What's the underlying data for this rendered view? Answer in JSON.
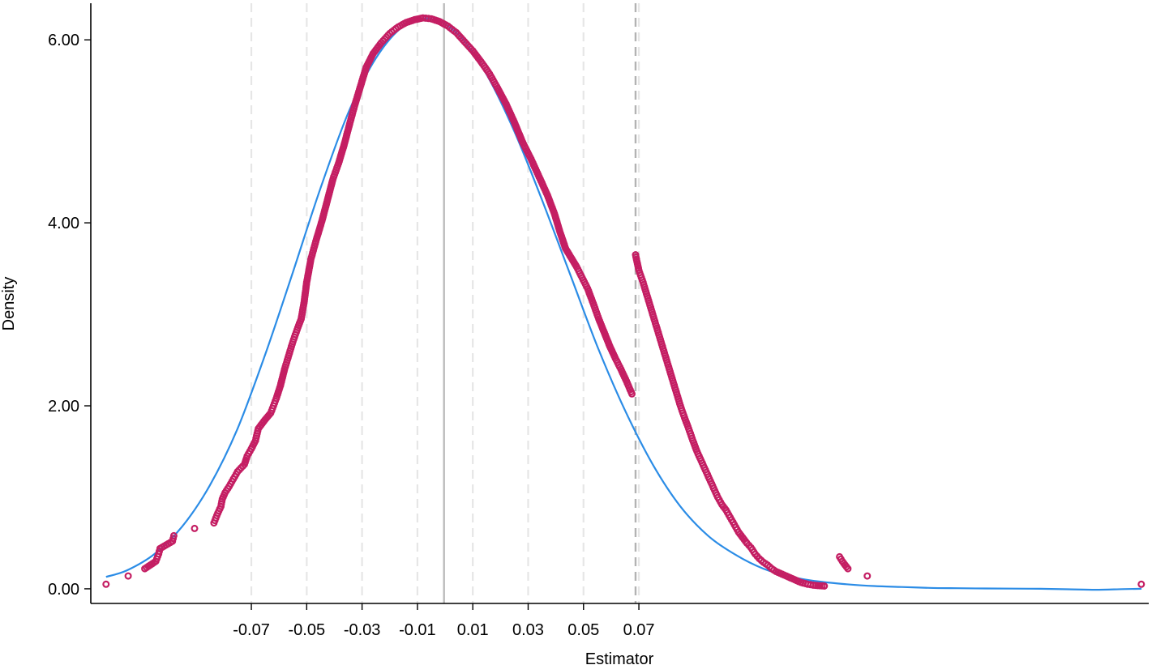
{
  "chart_data": {
    "type": "scatter",
    "xlabel": "Estimator",
    "ylabel": "Density",
    "xlim": [
      -0.128,
      0.2542
    ],
    "ylim": [
      -0.16,
      6.4
    ],
    "x_ticks": [
      -0.07,
      -0.05,
      -0.03,
      -0.01,
      0.01,
      0.03,
      0.05,
      0.07
    ],
    "x_tick_labels": [
      "-0.07",
      "-0.05",
      "-0.03",
      "-0.01",
      "0.01",
      "0.03",
      "0.05",
      "0.07"
    ],
    "y_ticks": [
      0,
      2,
      4,
      6
    ],
    "y_tick_labels": [
      "0.00",
      "2.00",
      "4.00",
      "6.00"
    ],
    "grid": false,
    "reference_lines": {
      "dashed_light": [
        -0.07,
        -0.05,
        -0.03,
        -0.01,
        0.01,
        0.03,
        0.05,
        0.07
      ],
      "solid_mean": -0.0004,
      "dashed_dark": 0.0688
    },
    "colors": {
      "points": "#c41e63",
      "curve": "#2b8ce6",
      "ref_light": "#e6e6e6",
      "ref_mean": "#bbbbbb",
      "ref_dark": "#b3b3b3",
      "axis": "#000000"
    },
    "series": [
      {
        "type": "line",
        "x": [
          -0.1225,
          -0.115,
          -0.105,
          -0.095,
          -0.085,
          -0.075,
          -0.065,
          -0.055,
          -0.045,
          -0.035,
          -0.025,
          -0.015,
          -0.005,
          0.005,
          0.015,
          0.025,
          0.035,
          0.045,
          0.055,
          0.065,
          0.075,
          0.085,
          0.095,
          0.105,
          0.115,
          0.125,
          0.135,
          0.145,
          0.155,
          0.165,
          0.175,
          0.185,
          0.195,
          0.205,
          0.215,
          0.225,
          0.235,
          0.245,
          0.2516
        ],
        "y": [
          0.13,
          0.2,
          0.38,
          0.68,
          1.13,
          1.75,
          2.56,
          3.46,
          4.38,
          5.2,
          5.8,
          6.15,
          6.23,
          6.05,
          5.62,
          5.0,
          4.25,
          3.45,
          2.65,
          1.95,
          1.36,
          0.9,
          0.58,
          0.37,
          0.22,
          0.13,
          0.08,
          0.05,
          0.03,
          0.02,
          0.01,
          0.006,
          0.004,
          0.002,
          0.0,
          -0.005,
          -0.01,
          -0.003,
          0.0
        ]
      },
      {
        "type": "scatter",
        "x": [
          -0.1225,
          -0.1145,
          -0.1085,
          -0.1045,
          -0.1035,
          -0.103,
          -0.0985,
          -0.098,
          -0.0905,
          -0.0835,
          -0.0825,
          -0.081,
          -0.0805,
          -0.0795,
          -0.078,
          -0.0765,
          -0.075,
          -0.0725,
          -0.0715,
          -0.07,
          -0.0685,
          -0.0675,
          -0.065,
          -0.063,
          -0.062,
          -0.061,
          -0.0595,
          -0.058,
          -0.0565,
          -0.055,
          -0.0535,
          -0.052,
          -0.051,
          -0.05,
          -0.0485,
          -0.0465,
          -0.0445,
          -0.0425,
          -0.0405,
          -0.0385,
          -0.0365,
          -0.0345,
          -0.0325,
          -0.0305,
          -0.0285,
          -0.026,
          -0.023,
          -0.02,
          -0.017,
          -0.014,
          -0.011,
          -0.008,
          -0.005,
          -0.002,
          0.001,
          0.004,
          0.007,
          0.01,
          0.013,
          0.016,
          0.019,
          0.022,
          0.025,
          0.028,
          0.031,
          0.034,
          0.037,
          0.0395,
          0.0415,
          0.0435,
          0.0455,
          0.0475,
          0.0495,
          0.0515,
          0.0535,
          0.0555,
          0.0575,
          0.0595,
          0.0615,
          0.0635,
          0.0655,
          0.0675,
          0.0688,
          0.07,
          0.0715,
          0.073,
          0.0745,
          0.076,
          0.0775,
          0.079,
          0.0805,
          0.082,
          0.0835,
          0.085,
          0.0865,
          0.088,
          0.0895,
          0.091,
          0.0925,
          0.094,
          0.0955,
          0.097,
          0.0985,
          0.1,
          0.1015,
          0.103,
          0.1045,
          0.106,
          0.1075,
          0.109,
          0.1105,
          0.112,
          0.1135,
          0.115,
          0.1165,
          0.118,
          0.1195,
          0.121,
          0.1225,
          0.124,
          0.1255,
          0.127,
          0.1285,
          0.131,
          0.133,
          0.137,
          0.1425,
          0.1435,
          0.1455,
          0.1525,
          0.2515
        ],
        "y": [
          0.05,
          0.14,
          0.22,
          0.3,
          0.38,
          0.44,
          0.52,
          0.58,
          0.66,
          0.72,
          0.8,
          0.9,
          0.98,
          1.05,
          1.12,
          1.2,
          1.28,
          1.36,
          1.45,
          1.53,
          1.62,
          1.75,
          1.85,
          1.92,
          2.0,
          2.08,
          2.22,
          2.4,
          2.55,
          2.7,
          2.83,
          2.95,
          3.12,
          3.35,
          3.6,
          3.82,
          4.02,
          4.25,
          4.48,
          4.65,
          4.85,
          5.08,
          5.3,
          5.5,
          5.7,
          5.85,
          5.97,
          6.07,
          6.14,
          6.19,
          6.22,
          6.24,
          6.23,
          6.2,
          6.15,
          6.08,
          5.98,
          5.88,
          5.76,
          5.63,
          5.47,
          5.3,
          5.1,
          4.88,
          4.7,
          4.5,
          4.3,
          4.1,
          3.9,
          3.72,
          3.62,
          3.52,
          3.4,
          3.28,
          3.12,
          2.95,
          2.8,
          2.65,
          2.52,
          2.4,
          2.27,
          2.13,
          3.65,
          3.48,
          3.35,
          3.2,
          3.05,
          2.9,
          2.75,
          2.6,
          2.45,
          2.3,
          2.15,
          2.0,
          1.87,
          1.75,
          1.62,
          1.5,
          1.4,
          1.3,
          1.2,
          1.1,
          1.0,
          0.92,
          0.86,
          0.78,
          0.7,
          0.62,
          0.56,
          0.5,
          0.45,
          0.38,
          0.33,
          0.29,
          0.26,
          0.22,
          0.19,
          0.17,
          0.15,
          0.13,
          0.11,
          0.09,
          0.07,
          0.05,
          0.04,
          0.03,
          0.35,
          0.3,
          0.22,
          0.14,
          0.05
        ]
      }
    ]
  }
}
